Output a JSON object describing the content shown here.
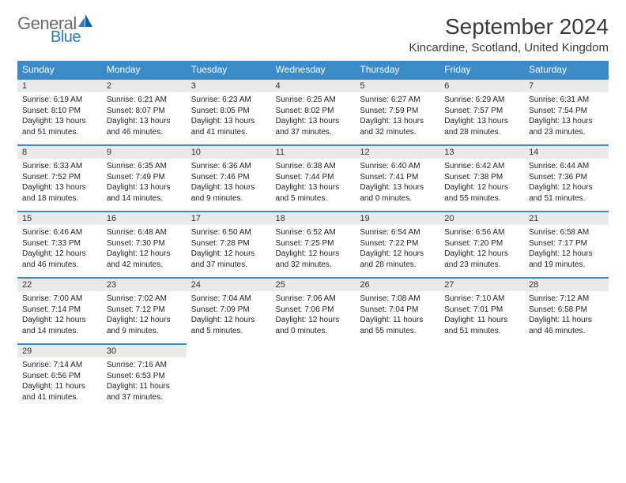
{
  "logo": {
    "general": "General",
    "blue": "Blue"
  },
  "title": "September 2024",
  "location": "Kincardine, Scotland, United Kingdom",
  "colors": {
    "header_bg": "#3b8bc8",
    "header_fg": "#ffffff",
    "daynum_bg": "#e9e9e9",
    "daynum_border": "#3b8bc8",
    "logo_gray": "#6b6b6b",
    "logo_blue": "#2a7dc0",
    "page_bg": "#ffffff",
    "text": "#333333"
  },
  "weekdays": [
    "Sunday",
    "Monday",
    "Tuesday",
    "Wednesday",
    "Thursday",
    "Friday",
    "Saturday"
  ],
  "weeks": [
    [
      {
        "n": "1",
        "sr": "6:19 AM",
        "ss": "8:10 PM",
        "dl": "13 hours and 51 minutes."
      },
      {
        "n": "2",
        "sr": "6:21 AM",
        "ss": "8:07 PM",
        "dl": "13 hours and 46 minutes."
      },
      {
        "n": "3",
        "sr": "6:23 AM",
        "ss": "8:05 PM",
        "dl": "13 hours and 41 minutes."
      },
      {
        "n": "4",
        "sr": "6:25 AM",
        "ss": "8:02 PM",
        "dl": "13 hours and 37 minutes."
      },
      {
        "n": "5",
        "sr": "6:27 AM",
        "ss": "7:59 PM",
        "dl": "13 hours and 32 minutes."
      },
      {
        "n": "6",
        "sr": "6:29 AM",
        "ss": "7:57 PM",
        "dl": "13 hours and 28 minutes."
      },
      {
        "n": "7",
        "sr": "6:31 AM",
        "ss": "7:54 PM",
        "dl": "13 hours and 23 minutes."
      }
    ],
    [
      {
        "n": "8",
        "sr": "6:33 AM",
        "ss": "7:52 PM",
        "dl": "13 hours and 18 minutes."
      },
      {
        "n": "9",
        "sr": "6:35 AM",
        "ss": "7:49 PM",
        "dl": "13 hours and 14 minutes."
      },
      {
        "n": "10",
        "sr": "6:36 AM",
        "ss": "7:46 PM",
        "dl": "13 hours and 9 minutes."
      },
      {
        "n": "11",
        "sr": "6:38 AM",
        "ss": "7:44 PM",
        "dl": "13 hours and 5 minutes."
      },
      {
        "n": "12",
        "sr": "6:40 AM",
        "ss": "7:41 PM",
        "dl": "13 hours and 0 minutes."
      },
      {
        "n": "13",
        "sr": "6:42 AM",
        "ss": "7:38 PM",
        "dl": "12 hours and 55 minutes."
      },
      {
        "n": "14",
        "sr": "6:44 AM",
        "ss": "7:36 PM",
        "dl": "12 hours and 51 minutes."
      }
    ],
    [
      {
        "n": "15",
        "sr": "6:46 AM",
        "ss": "7:33 PM",
        "dl": "12 hours and 46 minutes."
      },
      {
        "n": "16",
        "sr": "6:48 AM",
        "ss": "7:30 PM",
        "dl": "12 hours and 42 minutes."
      },
      {
        "n": "17",
        "sr": "6:50 AM",
        "ss": "7:28 PM",
        "dl": "12 hours and 37 minutes."
      },
      {
        "n": "18",
        "sr": "6:52 AM",
        "ss": "7:25 PM",
        "dl": "12 hours and 32 minutes."
      },
      {
        "n": "19",
        "sr": "6:54 AM",
        "ss": "7:22 PM",
        "dl": "12 hours and 28 minutes."
      },
      {
        "n": "20",
        "sr": "6:56 AM",
        "ss": "7:20 PM",
        "dl": "12 hours and 23 minutes."
      },
      {
        "n": "21",
        "sr": "6:58 AM",
        "ss": "7:17 PM",
        "dl": "12 hours and 19 minutes."
      }
    ],
    [
      {
        "n": "22",
        "sr": "7:00 AM",
        "ss": "7:14 PM",
        "dl": "12 hours and 14 minutes."
      },
      {
        "n": "23",
        "sr": "7:02 AM",
        "ss": "7:12 PM",
        "dl": "12 hours and 9 minutes."
      },
      {
        "n": "24",
        "sr": "7:04 AM",
        "ss": "7:09 PM",
        "dl": "12 hours and 5 minutes."
      },
      {
        "n": "25",
        "sr": "7:06 AM",
        "ss": "7:06 PM",
        "dl": "12 hours and 0 minutes."
      },
      {
        "n": "26",
        "sr": "7:08 AM",
        "ss": "7:04 PM",
        "dl": "11 hours and 55 minutes."
      },
      {
        "n": "27",
        "sr": "7:10 AM",
        "ss": "7:01 PM",
        "dl": "11 hours and 51 minutes."
      },
      {
        "n": "28",
        "sr": "7:12 AM",
        "ss": "6:58 PM",
        "dl": "11 hours and 46 minutes."
      }
    ],
    [
      {
        "n": "29",
        "sr": "7:14 AM",
        "ss": "6:56 PM",
        "dl": "11 hours and 41 minutes."
      },
      {
        "n": "30",
        "sr": "7:16 AM",
        "ss": "6:53 PM",
        "dl": "11 hours and 37 minutes."
      },
      null,
      null,
      null,
      null,
      null
    ]
  ],
  "labels": {
    "sunrise": "Sunrise: ",
    "sunset": "Sunset: ",
    "daylight": "Daylight: "
  }
}
